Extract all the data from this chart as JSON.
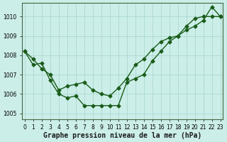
{
  "title": "Graphe pression niveau de la mer (hPa)",
  "background_color": "#cceee8",
  "grid_color": "#aad8d0",
  "line_color": "#1a5c1a",
  "ylim": [
    1004.7,
    1010.7
  ],
  "xlim": [
    -0.3,
    23.3
  ],
  "yticks": [
    1005,
    1006,
    1007,
    1008,
    1009,
    1010
  ],
  "xtick_labels": [
    "0",
    "1",
    "2",
    "3",
    "4",
    "5",
    "6",
    "7",
    "8",
    "9",
    "10",
    "11",
    "12",
    "13",
    "14",
    "15",
    "16",
    "17",
    "18",
    "19",
    "20",
    "21",
    "22",
    "23"
  ],
  "series1_x": [
    0,
    1,
    2,
    3,
    4,
    5,
    6,
    7,
    8,
    9,
    10,
    11,
    12,
    13,
    14,
    15,
    16,
    17,
    18,
    19,
    20,
    21,
    22,
    23
  ],
  "series1_y": [
    1008.2,
    1007.5,
    1007.6,
    1006.7,
    1006.0,
    1005.8,
    1005.9,
    1005.4,
    1005.4,
    1005.4,
    1005.4,
    1005.4,
    1006.6,
    1006.8,
    1007.0,
    1007.7,
    1008.2,
    1008.7,
    1009.0,
    1009.5,
    1009.9,
    1010.0,
    1010.0,
    1010.0
  ],
  "series2_x": [
    0,
    1,
    2,
    3,
    4,
    5,
    6,
    7,
    8,
    9,
    10,
    11,
    12,
    13,
    14,
    15,
    16,
    17,
    18,
    19,
    20,
    21,
    22,
    23
  ],
  "series2_y": [
    1008.2,
    1007.8,
    1007.3,
    1007.0,
    1006.2,
    1006.4,
    1006.5,
    1006.6,
    1006.2,
    1006.0,
    1005.9,
    1006.3,
    1006.8,
    1007.5,
    1007.8,
    1008.3,
    1008.7,
    1008.9,
    1009.0,
    1009.3,
    1009.5,
    1009.8,
    1010.5,
    1010.0
  ],
  "marker": "D",
  "markersize": 2.5,
  "linewidth": 1.0,
  "title_fontsize": 7,
  "tick_fontsize": 5.5
}
